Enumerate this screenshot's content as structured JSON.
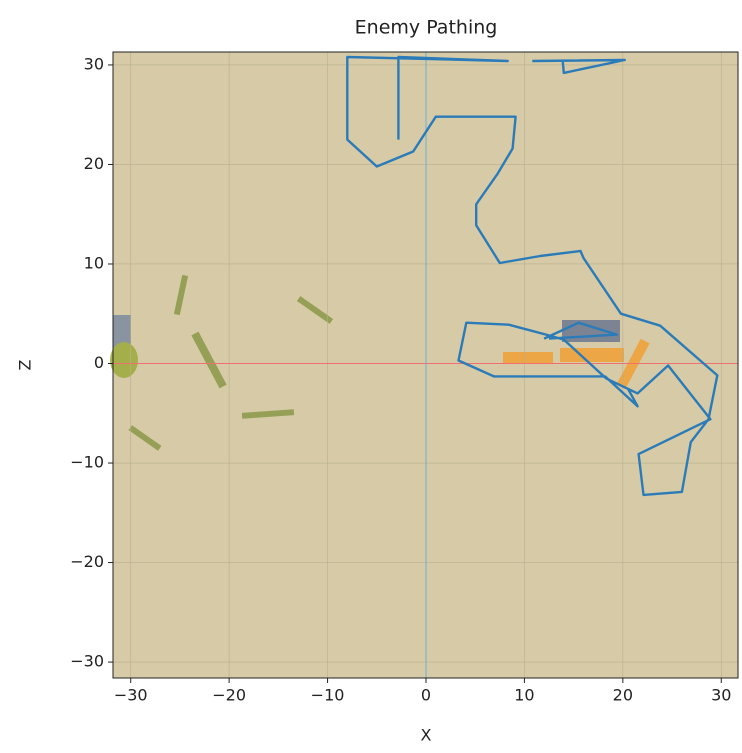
{
  "chart_data": {
    "type": "line",
    "title": "Enemy Pathing",
    "x_label": "X",
    "y_label": "Z",
    "xlim": [
      -31.8,
      31.7
    ],
    "ylim": [
      -31.6,
      31.3
    ],
    "xticks": [
      {
        "value": -30,
        "label": "−30"
      },
      {
        "value": -20,
        "label": "−20"
      },
      {
        "value": -10,
        "label": "−10"
      },
      0,
      10,
      20,
      30
    ],
    "yticks": [
      {
        "value": -30,
        "label": "−30"
      },
      {
        "value": -20,
        "label": "−20"
      },
      {
        "value": -10,
        "label": "−10"
      },
      0,
      10,
      20,
      30
    ],
    "grid": true,
    "background": "#d6cba6",
    "hline": {
      "value": 0,
      "color": "#f07070"
    },
    "vline": {
      "value": 0,
      "color": "#6ab0de"
    },
    "series": [
      {
        "color": "#2b7bb9",
        "x": [
          -2.8,
          -2.8,
          8.3,
          -8.0,
          -8.0,
          -5.0,
          -1.3,
          1.0,
          9.1,
          8.8,
          7.3,
          5.1,
          5.1,
          7.5,
          11.6,
          15.7,
          16.0,
          19.8,
          23.8,
          29.6,
          28.7,
          26.9,
          26.0,
          22.1,
          21.6,
          28.9,
          24.6,
          21.5,
          18.3,
          14.0,
          12.2,
          8.4,
          4.1,
          3.3,
          6.9,
          18.2,
          21.5,
          20.5,
          null,
          10.8,
          20.2,
          14.0,
          13.9,
          null,
          12.0,
          15.5,
          19.4,
          12.5
        ],
        "y": [
          22.5,
          30.8,
          30.4,
          30.8,
          22.5,
          19.8,
          21.3,
          24.8,
          24.8,
          21.6,
          19.1,
          16.0,
          13.9,
          10.1,
          10.8,
          11.3,
          10.6,
          5.0,
          3.8,
          -1.2,
          -5.6,
          -7.9,
          -12.9,
          -13.2,
          -9.1,
          -5.6,
          -0.2,
          -3.0,
          -1.5,
          2.4,
          2.9,
          3.9,
          4.1,
          0.3,
          -1.3,
          -1.3,
          -4.3,
          -2.5,
          null,
          30.4,
          30.5,
          29.2,
          30.3,
          null,
          2.5,
          4.1,
          2.9,
          2.5
        ]
      }
    ]
  }
}
